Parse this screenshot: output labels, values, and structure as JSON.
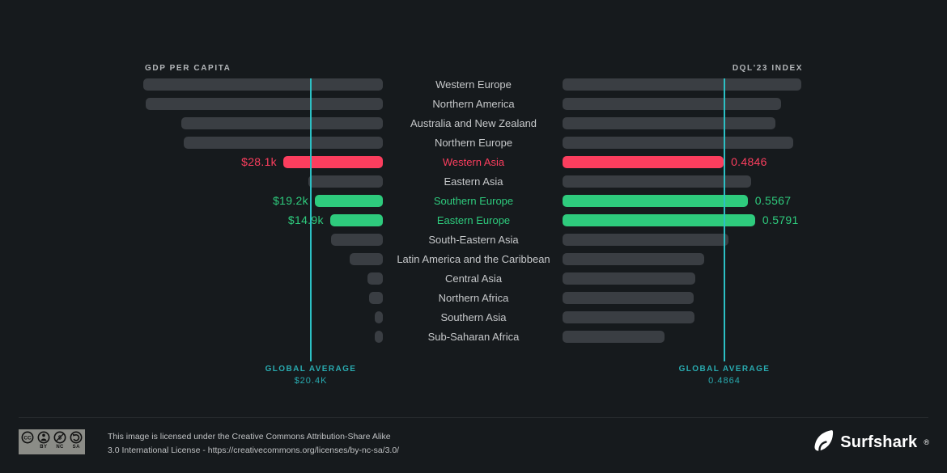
{
  "colors": {
    "background": "#161a1d",
    "bar_default": "#3a3e43",
    "highlight_red": "#fb3e5e",
    "highlight_green": "#2ecb7d",
    "average_line": "#2cc0c4",
    "average_text": "#29abb0",
    "region_text": "#c6c8ca",
    "cc_badge_bg": "#8b8c87"
  },
  "chart_data": [
    {
      "type": "bar",
      "orientation": "horizontal-right-aligned",
      "title": "GDP PER CAPITA",
      "unit": "thousand USD",
      "axis_max": 67.6,
      "categories": [
        "Western Europe",
        "Northern America",
        "Australia and New Zealand",
        "Northern Europe",
        "Western Asia",
        "Eastern Asia",
        "Southern Europe",
        "Eastern Europe",
        "South-Eastern Asia",
        "Latin America and the Caribbean",
        "Central Asia",
        "Northern Africa",
        "Southern Asia",
        "Sub-Saharan Africa"
      ],
      "values": [
        67.6,
        66.9,
        56.9,
        56.3,
        28.1,
        21.1,
        19.2,
        14.9,
        14.6,
        9.4,
        4.4,
        3.9,
        2.3,
        2.2
      ],
      "value_labels": [
        "",
        "",
        "",
        "",
        "$28.1k",
        "",
        "$19.2k",
        "$14.9k",
        "",
        "",
        "",
        "",
        "",
        ""
      ],
      "highlights": [
        null,
        null,
        null,
        null,
        "red",
        null,
        "green",
        "green",
        null,
        null,
        null,
        null,
        null,
        null
      ],
      "global_average": {
        "label": "GLOBAL AVERAGE",
        "display": "$20.4K",
        "value": 20.4
      }
    },
    {
      "type": "bar",
      "orientation": "horizontal-left-aligned",
      "title": "DQL'23 INDEX",
      "unit": "index",
      "axis_max": 0.718,
      "categories": [
        "Western Europe",
        "Northern America",
        "Australia and New Zealand",
        "Northern Europe",
        "Western Asia",
        "Eastern Asia",
        "Southern Europe",
        "Eastern Europe",
        "South-Eastern Asia",
        "Latin America and the Caribbean",
        "Central Asia",
        "Northern Africa",
        "Southern Asia",
        "Sub-Saharan Africa"
      ],
      "values": [
        0.718,
        0.657,
        0.64,
        0.694,
        0.4846,
        0.5666,
        0.5567,
        0.5791,
        0.499,
        0.426,
        0.399,
        0.394,
        0.397,
        0.307
      ],
      "value_labels": [
        "",
        "",
        "",
        "",
        "0.4846",
        "",
        "0.5567",
        "0.5791",
        "",
        "",
        "",
        "",
        "",
        ""
      ],
      "highlights": [
        null,
        null,
        null,
        null,
        "red",
        null,
        "green",
        "green",
        null,
        null,
        null,
        null,
        null,
        null
      ],
      "global_average": {
        "label": "GLOBAL AVERAGE",
        "display": "0.4864",
        "value": 0.4864
      }
    }
  ],
  "footer": {
    "cc_badge": {
      "labels": [
        "BY",
        "NC",
        "SA"
      ]
    },
    "license_line1": "This image is licensed under the Creative Commons Attribution-Share Alike",
    "license_line2": "3.0 International License - https://creativecommons.org/licenses/by-nc-sa/3.0/",
    "brand": "Surfshark",
    "brand_reg": "®"
  }
}
